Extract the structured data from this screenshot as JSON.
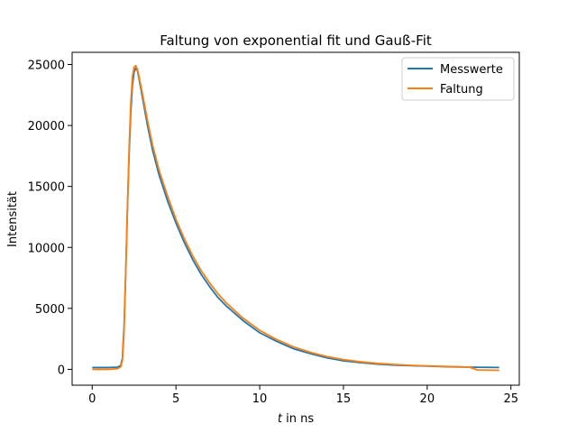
{
  "chart_data": {
    "type": "line",
    "title": "Faltung von exponential fit und Gauß-Fit",
    "xlabel_var": "t",
    "xlabel_rest": " in ns",
    "ylabel": "Intensität",
    "xlim": [
      -1.2,
      25.5
    ],
    "ylim": [
      -1300,
      26000
    ],
    "xticks": [
      0,
      5,
      10,
      15,
      20,
      25
    ],
    "xtick_labels": [
      "0",
      "5",
      "10",
      "15",
      "20",
      "25"
    ],
    "yticks": [
      0,
      5000,
      10000,
      15000,
      20000,
      25000
    ],
    "ytick_labels": [
      "0",
      "5000",
      "10000",
      "15000",
      "20000",
      "25000"
    ],
    "grid": false,
    "legend_position": "top-right",
    "series": [
      {
        "name": "Messwerte",
        "color": "#1f77b4",
        "x": [
          0,
          0.5,
          1.0,
          1.5,
          1.7,
          1.8,
          1.9,
          2.0,
          2.1,
          2.2,
          2.3,
          2.4,
          2.5,
          2.6,
          2.7,
          2.8,
          3.0,
          3.3,
          3.6,
          4.0,
          4.5,
          5.0,
          5.5,
          6.0,
          6.5,
          7.0,
          7.5,
          8.0,
          9.0,
          10.0,
          11.0,
          12.0,
          13.0,
          14.0,
          15.0,
          16.0,
          17.0,
          18.0,
          19.0,
          20.0,
          21.0,
          22.0,
          23.0,
          24.3
        ],
        "y": [
          150,
          150,
          150,
          180,
          300,
          900,
          3500,
          8000,
          13000,
          17500,
          21000,
          23300,
          24400,
          24700,
          24500,
          23800,
          22300,
          20000,
          18000,
          15900,
          13800,
          12000,
          10400,
          9000,
          7800,
          6800,
          5900,
          5200,
          4000,
          3000,
          2300,
          1700,
          1300,
          950,
          700,
          550,
          430,
          350,
          300,
          260,
          220,
          190,
          170,
          150
        ]
      },
      {
        "name": "Faltung",
        "color": "#ff7f0e",
        "x": [
          0,
          0.5,
          1.0,
          1.5,
          1.7,
          1.8,
          1.9,
          2.0,
          2.1,
          2.2,
          2.3,
          2.4,
          2.5,
          2.6,
          2.7,
          2.8,
          3.0,
          3.3,
          3.6,
          4.0,
          4.5,
          5.0,
          5.5,
          6.0,
          6.5,
          7.0,
          7.5,
          8.0,
          9.0,
          10.0,
          11.0,
          12.0,
          13.0,
          14.0,
          15.0,
          16.0,
          17.0,
          18.0,
          19.0,
          20.0,
          21.0,
          22.0,
          22.5,
          23.0,
          24.3
        ],
        "y": [
          0,
          0,
          0,
          50,
          200,
          700,
          3000,
          7800,
          13200,
          18000,
          21800,
          24000,
          24800,
          24900,
          24600,
          24000,
          22600,
          20400,
          18400,
          16300,
          14200,
          12300,
          10700,
          9300,
          8100,
          7100,
          6200,
          5450,
          4200,
          3200,
          2450,
          1850,
          1400,
          1050,
          800,
          620,
          490,
          400,
          330,
          280,
          240,
          210,
          190,
          -50,
          -80
        ]
      }
    ]
  }
}
